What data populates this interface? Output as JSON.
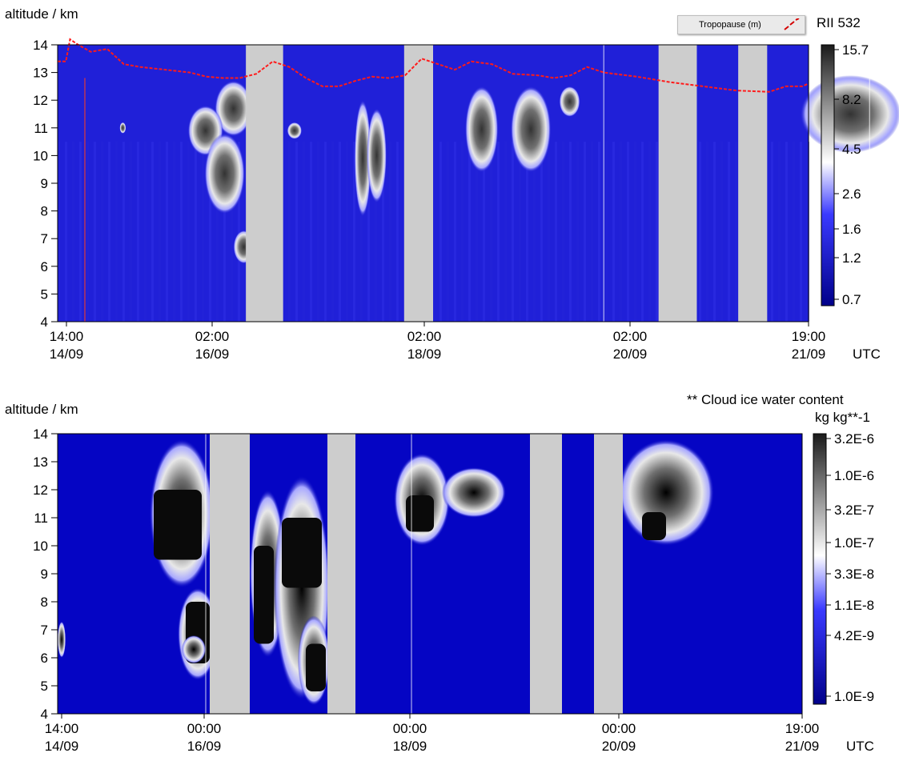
{
  "chart_data": [
    {
      "type": "heatmap",
      "ylabel": "altitude / km",
      "ylim": [
        4,
        14
      ],
      "y_ticks": [
        "4",
        "5",
        "6",
        "7",
        "8",
        "9",
        "10",
        "11",
        "12",
        "13",
        "14"
      ],
      "x_ticks": [
        {
          "time": "14:00",
          "date": "14/09"
        },
        {
          "time": "02:00",
          "date": "16/09"
        },
        {
          "time": "02:00",
          "date": "18/09"
        },
        {
          "time": "02:00",
          "date": "20/09"
        },
        {
          "time": "19:00",
          "date": "21/09"
        }
      ],
      "x_unit": "UTC",
      "legend_label": "Tropopause (m)",
      "colorbar_title": "RII  532",
      "colorbar_ticks": [
        "15.7",
        "8.2",
        "4.5",
        "2.6",
        "1.6",
        "1.2",
        "0.7"
      ],
      "tropopause_km": [
        [
          0,
          13.4
        ],
        [
          8,
          13.4
        ],
        [
          12,
          14.2
        ],
        [
          20,
          14.0
        ],
        [
          32,
          13.75
        ],
        [
          48,
          13.85
        ],
        [
          64,
          13.3
        ],
        [
          80,
          13.2
        ],
        [
          104,
          13.1
        ],
        [
          128,
          13.0
        ],
        [
          144,
          12.85
        ],
        [
          160,
          12.8
        ],
        [
          176,
          12.8
        ],
        [
          192,
          12.95
        ],
        [
          208,
          13.4
        ],
        [
          224,
          13.2
        ],
        [
          240,
          12.8
        ],
        [
          256,
          12.5
        ],
        [
          272,
          12.5
        ],
        [
          288,
          12.7
        ],
        [
          304,
          12.85
        ],
        [
          320,
          12.8
        ],
        [
          336,
          12.9
        ],
        [
          352,
          13.5
        ],
        [
          368,
          13.3
        ],
        [
          384,
          13.1
        ],
        [
          400,
          13.4
        ],
        [
          420,
          13.3
        ],
        [
          440,
          12.95
        ],
        [
          464,
          12.9
        ],
        [
          480,
          12.8
        ],
        [
          496,
          12.9
        ],
        [
          512,
          13.2
        ],
        [
          528,
          13.0
        ],
        [
          560,
          12.85
        ],
        [
          592,
          12.65
        ],
        [
          624,
          12.5
        ],
        [
          656,
          12.35
        ],
        [
          688,
          12.3
        ],
        [
          704,
          12.5
        ],
        [
          720,
          12.5
        ],
        [
          726,
          12.6
        ]
      ],
      "data_gaps_x": [
        [
          182,
          218
        ],
        [
          335,
          363
        ],
        [
          581,
          618
        ],
        [
          658,
          686
        ]
      ],
      "clouds": [
        {
          "x": [
            152,
            188
          ],
          "y": [
            10.7,
            12.7
          ]
        },
        {
          "x": [
            126,
            160
          ],
          "y": [
            10.0,
            11.8
          ]
        },
        {
          "x": [
            142,
            181
          ],
          "y": [
            7.9,
            10.8
          ]
        },
        {
          "x": [
            222,
            236
          ],
          "y": [
            10.6,
            11.2
          ]
        },
        {
          "x": [
            287,
            303
          ],
          "y": [
            7.8,
            12.0
          ]
        },
        {
          "x": [
            299,
            318
          ],
          "y": [
            8.3,
            11.7
          ]
        },
        {
          "x": [
            170,
            190
          ],
          "y": [
            6.1,
            7.3
          ]
        },
        {
          "x": [
            394,
            426
          ],
          "y": [
            9.4,
            12.5
          ]
        },
        {
          "x": [
            438,
            477
          ],
          "y": [
            9.4,
            12.5
          ]
        },
        {
          "x": [
            485,
            505
          ],
          "y": [
            11.4,
            12.5
          ]
        },
        {
          "x": [
            718,
            815
          ],
          "y": [
            10.1,
            12.9
          ]
        },
        {
          "x": [
            60,
            66
          ],
          "y": [
            10.8,
            11.2
          ]
        }
      ]
    },
    {
      "type": "heatmap",
      "title": "** Cloud ice water content",
      "ylabel": "altitude / km",
      "ylim": [
        4,
        14
      ],
      "y_ticks": [
        "4",
        "5",
        "6",
        "7",
        "8",
        "9",
        "10",
        "11",
        "12",
        "13",
        "14"
      ],
      "x_ticks": [
        {
          "time": "14:00",
          "date": "14/09"
        },
        {
          "time": "00:00",
          "date": "16/09"
        },
        {
          "time": "00:00",
          "date": "18/09"
        },
        {
          "time": "00:00",
          "date": "20/09"
        },
        {
          "time": "19:00",
          "date": "21/09"
        }
      ],
      "x_unit": "UTC",
      "colorbar_title": "kg kg**-1",
      "colorbar_ticks": [
        "3.2E-6",
        "1.0E-6",
        "3.2E-7",
        "1.0E-7",
        "3.3E-8",
        "1.1E-8",
        "4.2E-9",
        "1.0E-9"
      ],
      "data_gaps_x": [
        [
          190,
          240
        ],
        [
          337,
          372
        ],
        [
          590,
          630
        ],
        [
          670,
          706
        ]
      ],
      "clouds": [
        {
          "x": [
            115,
            195
          ],
          "y": [
            8.5,
            13.8
          ],
          "core": [
            120,
            180,
            9.5,
            12.0
          ]
        },
        {
          "x": [
            150,
            200
          ],
          "y": [
            5.2,
            8.5
          ],
          "core": [
            160,
            190,
            5.8,
            8.0
          ]
        },
        {
          "x": [
            240,
            285
          ],
          "y": [
            6.0,
            12.0
          ],
          "core": [
            245,
            270,
            6.5,
            10.0
          ]
        },
        {
          "x": [
            270,
            340
          ],
          "y": [
            4.5,
            12.5
          ],
          "core": [
            280,
            330,
            8.5,
            11.0
          ]
        },
        {
          "x": [
            300,
            340
          ],
          "y": [
            4.3,
            7.5
          ],
          "core": [
            310,
            335,
            4.8,
            6.5
          ]
        },
        {
          "x": [
            420,
            490
          ],
          "y": [
            10.0,
            13.3
          ],
          "core": [
            435,
            470,
            10.5,
            11.8
          ]
        },
        {
          "x": [
            480,
            560
          ],
          "y": [
            11.0,
            12.8
          ]
        },
        {
          "x": [
            700,
            820
          ],
          "y": [
            10.0,
            13.8
          ],
          "core": [
            730,
            760,
            10.2,
            11.2
          ]
        },
        {
          "x": [
            0,
            10
          ],
          "y": [
            6.0,
            7.3
          ]
        },
        {
          "x": [
            155,
            185
          ],
          "y": [
            5.8,
            6.8
          ]
        }
      ]
    }
  ]
}
